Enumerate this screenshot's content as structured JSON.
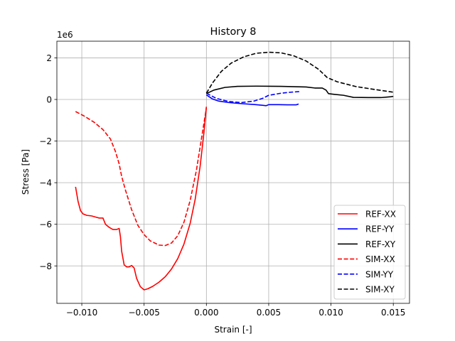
{
  "chart_data": {
    "type": "line",
    "title": "History 8",
    "xlabel": "Strain [-]",
    "ylabel": "Stress [Pa]",
    "y_offset_label": "1e6",
    "xlim": [
      -0.012,
      0.0163
    ],
    "ylim": [
      -9.8,
      2.8
    ],
    "y_scale_factor": 1000000,
    "grid": true,
    "legend_position": "lower right",
    "x_ticks": [
      {
        "value": -0.01,
        "label": "−0.010"
      },
      {
        "value": -0.005,
        "label": "−0.005"
      },
      {
        "value": 0.0,
        "label": "0.000"
      },
      {
        "value": 0.005,
        "label": "0.005"
      },
      {
        "value": 0.01,
        "label": "0.010"
      },
      {
        "value": 0.015,
        "label": "0.015"
      }
    ],
    "y_ticks": [
      {
        "value": -8,
        "label": "−8"
      },
      {
        "value": -6,
        "label": "−6"
      },
      {
        "value": -4,
        "label": "−4"
      },
      {
        "value": -2,
        "label": "−2"
      },
      {
        "value": 0,
        "label": "0"
      },
      {
        "value": 2,
        "label": "2"
      }
    ],
    "series": [
      {
        "name": "REF-XX",
        "color": "#ff0000",
        "dash": "solid",
        "points": [
          [
            -0.0105,
            -4.2
          ],
          [
            -0.0103,
            -4.9
          ],
          [
            -0.0101,
            -5.35
          ],
          [
            -0.0099,
            -5.5
          ],
          [
            -0.0096,
            -5.57
          ],
          [
            -0.0092,
            -5.6
          ],
          [
            -0.0089,
            -5.65
          ],
          [
            -0.0086,
            -5.7
          ],
          [
            -0.0083,
            -5.7
          ],
          [
            -0.0081,
            -6.0
          ],
          [
            -0.0078,
            -6.15
          ],
          [
            -0.0075,
            -6.25
          ],
          [
            -0.0072,
            -6.25
          ],
          [
            -0.007,
            -6.2
          ],
          [
            -0.0069,
            -6.6
          ],
          [
            -0.0068,
            -7.3
          ],
          [
            -0.0066,
            -7.95
          ],
          [
            -0.0064,
            -8.05
          ],
          [
            -0.0062,
            -8.05
          ],
          [
            -0.006,
            -7.98
          ],
          [
            -0.0058,
            -8.1
          ],
          [
            -0.0056,
            -8.6
          ],
          [
            -0.0053,
            -9.0
          ],
          [
            -0.005,
            -9.15
          ],
          [
            -0.0047,
            -9.1
          ],
          [
            -0.0043,
            -8.98
          ],
          [
            -0.0038,
            -8.78
          ],
          [
            -0.0033,
            -8.52
          ],
          [
            -0.0028,
            -8.15
          ],
          [
            -0.0023,
            -7.65
          ],
          [
            -0.0018,
            -6.95
          ],
          [
            -0.0013,
            -5.95
          ],
          [
            -0.0009,
            -4.8
          ],
          [
            -0.0005,
            -3.2
          ],
          [
            -0.0002,
            -1.6
          ],
          [
            0.0,
            -0.35
          ]
        ]
      },
      {
        "name": "REF-YY",
        "color": "#0000ff",
        "dash": "solid",
        "points": [
          [
            0.0,
            0.22
          ],
          [
            0.0005,
            0.02
          ],
          [
            0.001,
            -0.08
          ],
          [
            0.0018,
            -0.15
          ],
          [
            0.0028,
            -0.2
          ],
          [
            0.0038,
            -0.24
          ],
          [
            0.0045,
            -0.28
          ],
          [
            0.0048,
            -0.3
          ],
          [
            0.005,
            -0.25
          ],
          [
            0.0058,
            -0.25
          ],
          [
            0.0065,
            -0.26
          ],
          [
            0.0072,
            -0.26
          ],
          [
            0.0074,
            -0.22
          ]
        ]
      },
      {
        "name": "REF-XY",
        "color": "#000000",
        "dash": "solid",
        "points": [
          [
            0.0,
            0.28
          ],
          [
            0.0006,
            0.45
          ],
          [
            0.0015,
            0.58
          ],
          [
            0.0025,
            0.63
          ],
          [
            0.004,
            0.64
          ],
          [
            0.006,
            0.63
          ],
          [
            0.008,
            0.6
          ],
          [
            0.0087,
            0.55
          ],
          [
            0.0093,
            0.55
          ],
          [
            0.0096,
            0.45
          ],
          [
            0.0098,
            0.28
          ],
          [
            0.0102,
            0.25
          ],
          [
            0.011,
            0.2
          ],
          [
            0.0118,
            0.1
          ],
          [
            0.013,
            0.09
          ],
          [
            0.014,
            0.09
          ],
          [
            0.0148,
            0.13
          ],
          [
            0.015,
            0.15
          ]
        ]
      },
      {
        "name": "SIM-XX",
        "color": "#ff0000",
        "dash": "dashed",
        "points": [
          [
            -0.0105,
            -0.58
          ],
          [
            -0.0098,
            -0.8
          ],
          [
            -0.009,
            -1.1
          ],
          [
            -0.0083,
            -1.45
          ],
          [
            -0.0077,
            -1.9
          ],
          [
            -0.0073,
            -2.5
          ],
          [
            -0.007,
            -3.1
          ],
          [
            -0.0068,
            -3.7
          ],
          [
            -0.0065,
            -4.35
          ],
          [
            -0.006,
            -5.3
          ],
          [
            -0.0055,
            -6.05
          ],
          [
            -0.005,
            -6.5
          ],
          [
            -0.0045,
            -6.8
          ],
          [
            -0.0038,
            -7.0
          ],
          [
            -0.0033,
            -7.02
          ],
          [
            -0.0028,
            -6.9
          ],
          [
            -0.0023,
            -6.55
          ],
          [
            -0.0018,
            -5.9
          ],
          [
            -0.0013,
            -4.85
          ],
          [
            -0.0008,
            -3.4
          ],
          [
            -0.0004,
            -1.9
          ],
          [
            0.0,
            -0.4
          ]
        ]
      },
      {
        "name": "SIM-YY",
        "color": "#0000ff",
        "dash": "dashed",
        "points": [
          [
            0.0,
            0.3
          ],
          [
            0.0008,
            0.05
          ],
          [
            0.0018,
            -0.1
          ],
          [
            0.0028,
            -0.15
          ],
          [
            0.0038,
            -0.08
          ],
          [
            0.0045,
            0.05
          ],
          [
            0.005,
            0.2
          ],
          [
            0.006,
            0.3
          ],
          [
            0.0068,
            0.35
          ],
          [
            0.0075,
            0.38
          ]
        ]
      },
      {
        "name": "SIM-XY",
        "color": "#000000",
        "dash": "dashed",
        "points": [
          [
            0.0,
            0.3
          ],
          [
            0.0005,
            0.8
          ],
          [
            0.0012,
            1.35
          ],
          [
            0.002,
            1.75
          ],
          [
            0.003,
            2.05
          ],
          [
            0.004,
            2.22
          ],
          [
            0.005,
            2.27
          ],
          [
            0.006,
            2.24
          ],
          [
            0.007,
            2.1
          ],
          [
            0.008,
            1.85
          ],
          [
            0.009,
            1.45
          ],
          [
            0.0097,
            1.05
          ],
          [
            0.0105,
            0.85
          ],
          [
            0.012,
            0.62
          ],
          [
            0.0135,
            0.48
          ],
          [
            0.015,
            0.35
          ]
        ]
      }
    ]
  }
}
